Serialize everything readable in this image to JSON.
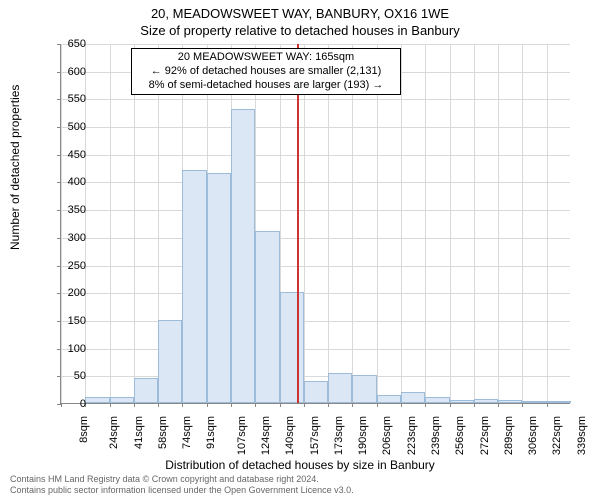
{
  "header": {
    "main_title": "20, MEADOWSWEET WAY, BANBURY, OX16 1WE",
    "sub_title": "Size of property relative to detached houses in Banbury"
  },
  "axes": {
    "y_label": "Number of detached properties",
    "x_label": "Distribution of detached houses by size in Banbury"
  },
  "chart": {
    "type": "histogram",
    "background_color": "#ffffff",
    "grid_color": "#d9d9d9",
    "axis_color": "#888888",
    "bar_fill": "#dbe7f5",
    "bar_stroke": "#9dbcd9",
    "ref_line_color": "#cc3333",
    "ylim": [
      0,
      650
    ],
    "ytick_step": 50,
    "yticks": [
      0,
      50,
      100,
      150,
      200,
      250,
      300,
      350,
      400,
      450,
      500,
      550,
      600,
      650
    ],
    "xticks": [
      "8sqm",
      "24sqm",
      "41sqm",
      "58sqm",
      "74sqm",
      "91sqm",
      "107sqm",
      "124sqm",
      "140sqm",
      "157sqm",
      "173sqm",
      "190sqm",
      "206sqm",
      "223sqm",
      "239sqm",
      "256sqm",
      "272sqm",
      "289sqm",
      "306sqm",
      "322sqm",
      "339sqm"
    ],
    "values": [
      0,
      10,
      10,
      45,
      150,
      420,
      415,
      530,
      310,
      200,
      40,
      55,
      50,
      15,
      20,
      10,
      5,
      8,
      5,
      3,
      2
    ],
    "ref_value_x": 165,
    "x_range": [
      8,
      347
    ],
    "bar_width_ratio": 1.0
  },
  "annotation": {
    "line1": "20 MEADOWSWEET WAY: 165sqm",
    "line2": "← 92% of detached houses are smaller (2,131)",
    "line3": "8% of semi-detached houses are larger (193) →"
  },
  "copyright": {
    "line1": "Contains HM Land Registry data © Crown copyright and database right 2024.",
    "line2": "Contains public sector information licensed under the Open Government Licence v3.0."
  }
}
